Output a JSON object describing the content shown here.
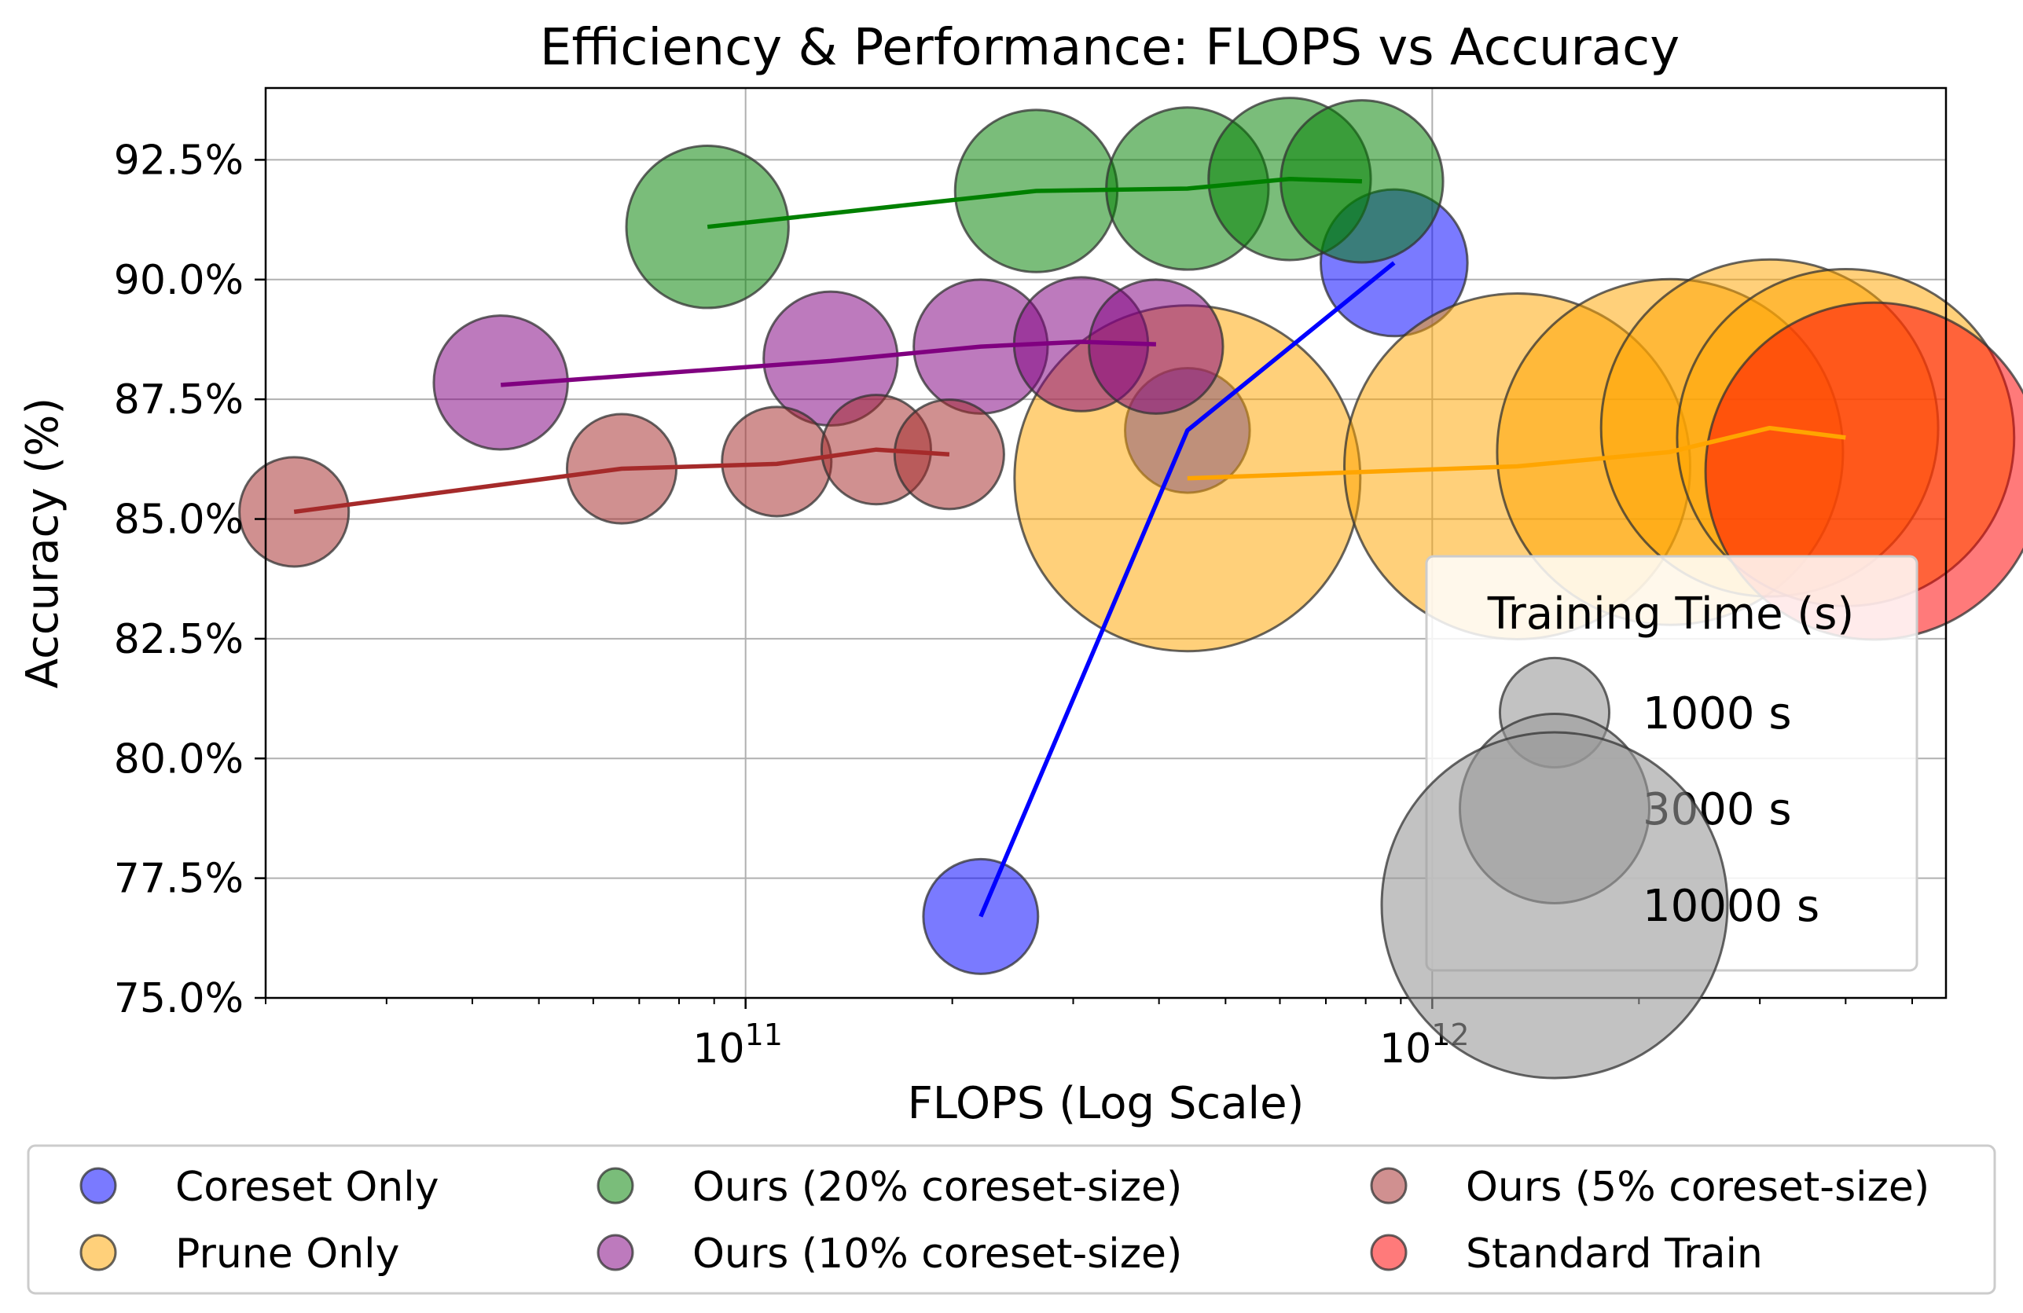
{
  "chart_data": {
    "type": "scatter",
    "title": "Efficiency & Performance: FLOPS vs Accuracy",
    "xlabel": "FLOPS (Log Scale)",
    "ylabel": "Accuracy (%)",
    "xscale": "log",
    "xlim": [
      20000000000.0,
      5600000000000.0
    ],
    "ylim": [
      75.0,
      94.0
    ],
    "grid": true,
    "yticks": [
      75.0,
      77.5,
      80.0,
      82.5,
      85.0,
      87.5,
      90.0,
      92.5
    ],
    "ytick_labels": [
      "75.0%",
      "77.5%",
      "80.0%",
      "82.5%",
      "85.0%",
      "87.5%",
      "90.0%",
      "92.5%"
    ],
    "xticks": [
      {
        "value": 100000000000.0,
        "base": "10",
        "exp": "11"
      },
      {
        "value": 1000000000000.0,
        "base": "10",
        "exp": "12"
      }
    ],
    "series": [
      {
        "name": "Coreset Only",
        "color": "#0000ff",
        "x": [
          220000000000.0,
          440000000000.0,
          880000000000.0
        ],
        "y": [
          76.7,
          86.85,
          90.35
        ],
        "time": [
          1100,
          1300,
          1800
        ],
        "line_x": [
          220000000000.0,
          440000000000.0,
          880000000000.0
        ],
        "line_y": [
          76.7,
          86.85,
          90.35
        ]
      },
      {
        "name": "Prune Only",
        "color": "#ffa500",
        "x": [
          440000000000.0,
          1330000000000.0,
          2220000000000.0,
          3100000000000.0,
          4000000000000.0
        ],
        "y": [
          85.85,
          86.1,
          86.4,
          86.9,
          86.7
        ],
        "time": [
          10000,
          10000,
          10000,
          9500,
          9500
        ],
        "line_x": [
          440000000000.0,
          1330000000000.0,
          2220000000000.0,
          3100000000000.0,
          4000000000000.0
        ],
        "line_y": [
          85.85,
          86.1,
          86.4,
          86.9,
          86.7
        ]
      },
      {
        "name": "Ours (20% coreset-size)",
        "color": "#008000",
        "x": [
          88000000000.0,
          265000000000.0,
          440000000000.0,
          620000000000.0,
          790000000000.0
        ],
        "y": [
          91.1,
          91.85,
          91.9,
          92.1,
          92.05
        ],
        "time": [
          2200,
          2200,
          2200,
          2200,
          2200
        ],
        "line_x": [
          88000000000.0,
          265000000000.0,
          440000000000.0,
          620000000000.0,
          790000000000.0
        ],
        "line_y": [
          91.1,
          91.85,
          91.9,
          92.1,
          92.05
        ]
      },
      {
        "name": "Ours (10% coreset-size)",
        "color": "#800080",
        "x": [
          44000000000.0,
          133000000000.0,
          220000000000.0,
          308000000000.0,
          396000000000.0
        ],
        "y": [
          87.85,
          88.35,
          88.6,
          88.65,
          88.6
        ],
        "time": [
          1500,
          1500,
          1500,
          1500,
          1500
        ],
        "line_x": [
          44000000000.0,
          133000000000.0,
          220000000000.0,
          308000000000.0,
          396000000000.0
        ],
        "line_y": [
          87.8,
          88.3,
          88.6,
          88.7,
          88.65
        ]
      },
      {
        "name": "Ours (5% coreset-size)",
        "color": "#a52a2a",
        "x": [
          22000000000.0,
          66000000000.0,
          111000000000.0,
          155000000000.0,
          198000000000.0
        ],
        "y": [
          85.15,
          86.05,
          86.2,
          86.45,
          86.35
        ],
        "time": [
          1000,
          1000,
          1000,
          1000,
          1000
        ],
        "line_x": [
          22000000000.0,
          66000000000.0,
          111000000000.0,
          155000000000.0,
          198000000000.0
        ],
        "line_y": [
          85.15,
          86.05,
          86.15,
          86.45,
          86.35
        ]
      },
      {
        "name": "Standard Train",
        "color": "#ff0000",
        "x": [
          4400000000000.0
        ],
        "y": [
          86.0
        ],
        "time": [
          9500
        ],
        "line_x": [],
        "line_y": []
      }
    ],
    "size_legend": {
      "title": "Training Time (s)",
      "entries": [
        {
          "value": 1000,
          "label": "1000 s"
        },
        {
          "value": 3000,
          "label": "3000 s"
        },
        {
          "value": 10000,
          "label": "10000 s"
        }
      ]
    },
    "legend": {
      "placement": "bottom-outside",
      "columns": 3,
      "entries": [
        "Coreset Only",
        "Prune Only",
        "Ours (20% coreset-size)",
        "Ours (10% coreset-size)",
        "Ours (5% coreset-size)",
        "Standard Train"
      ]
    }
  }
}
